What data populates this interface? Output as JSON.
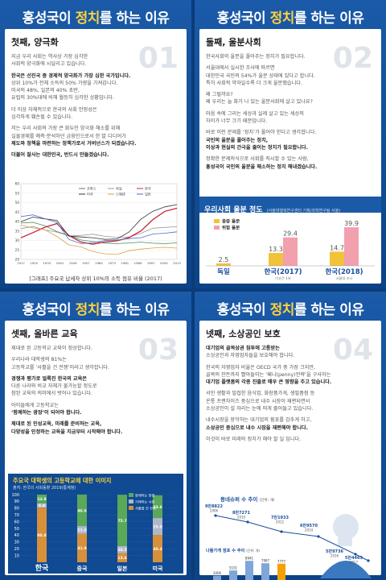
{
  "title": {
    "pre": "홍성국",
    "mid1": "이 ",
    "hl": "정치",
    "post": "를 하는 이유"
  },
  "p1": {
    "num": "01",
    "subtitle": "첫째, 양극화",
    "t1": "지금 우리 사회는 역사상 가장 심각한",
    "t2": "사회적 양극화에 시달리고 있습니다.",
    "t3": "한국은 선진국 중 경제적 양극화가 가장 심한 국가입니다.",
    "t4": "상위 10%가 전체 소득의 50% 가량을 가져갑니다.",
    "t5": "미국의 48%, 일본의 40% 초반,",
    "t6": "유럽의 30%대에 비해 월등히 심각한 상황입니다.",
    "t7": "더 이상 자체적으로 한국의 사회 안정성은",
    "t8": "심각하게 훼손될 수 있습니다.",
    "t9": "저는 우리 사회의 가장 큰 화두인 양극화 해소를 위해",
    "t10": "실물경제를 예측·분석하던 금융인으로서 한 발 디디어가",
    "t11": "제도와 정책을 마련하는 정책가로서 거버넌스가 되겠습니다.",
    "t12": "더불어 잘사는 대한민국, 반드시 만들겠습니다.",
    "caption": "[그래프] 주요국 납세자 상위 10%의 소득 점유 비율 (2017)"
  },
  "chart1": {
    "type": "line",
    "legend": [
      "프랑스",
      "독일",
      "한국",
      "미국",
      "스웨덴",
      "일본"
    ],
    "colors": [
      "#4a8a5a",
      "#999999",
      "#c8243a",
      "#333333",
      "#d8a040",
      "#4a6ec0"
    ],
    "yticks": [
      "60",
      "55",
      "50",
      "45",
      "40",
      "35",
      "30",
      "25",
      "20"
    ],
    "xticks": [
      "1917",
      "1925",
      "1933",
      "1941",
      "1949",
      "1957",
      "1965",
      "1973",
      "1981",
      "1989",
      "1997",
      "2005",
      "2013"
    ],
    "ylim": [
      20,
      60
    ]
  },
  "p2": {
    "num": "02",
    "subtitle": "둘째, 울분사회",
    "t1": "한국사회의 울분을 풀어주는 정치가 필요합니다.",
    "t2": "서울대에서 실시한 조사에 따르면",
    "t3": "대한민국 국민의 54%가 울분 상태에 있다고 합니다.",
    "t4": "특히 사회적 약자일수록 더 크게 울분했습니다.",
    "t5": "왜 그럴까요?",
    "t6": "왜 우리는 늘 화가 나 있는 울분사회에 살고 있나요?",
    "t7": "마음 속에 그리는 세상과 실제 살고 있는 세상의",
    "t8": "차이가 너무 크기 때문입니다.",
    "t9": "바로 이런 문제를 ‘정치’가 풀어야 한다고 생각합니다.",
    "t10": "국민의 울분을 풀어주는 정치,",
    "t11": "이상과 현실의 간극을 줄이는 정치가 필요합니다.",
    "t12": "정확한 문제의식으로 사회를 직시할 수 있는 사람,",
    "t13": "홍성국이 국민의 울분을 해소하는 정치 해내겠습니다.",
    "chart_title": "우리사회 울분 정도",
    "chart_src": "(서울대행복연구센터 기획/과학연구팀 서울)"
  },
  "chart2": {
    "type": "bar",
    "legend": [
      "중증 울분",
      "위험 울분"
    ],
    "colors": [
      "#f2c23a",
      "#f2a0ae"
    ],
    "categories": [
      "독일",
      "한국(2017)",
      "한국(2018)"
    ],
    "subs": [
      "",
      "이슈큰 1위",
      "서울대 조사"
    ],
    "series": [
      {
        "name": "중증 울분",
        "values": [
          2.5,
          13.3,
          14.7
        ]
      },
      {
        "name": "위험 울분",
        "values": [
          null,
          29.4,
          39.9
        ]
      }
    ],
    "labels": [
      "2.5",
      "13.3",
      "29.4",
      "14.7",
      "39.9"
    ]
  },
  "p3": {
    "num": "03",
    "subtitle": "셋째, 올바른 교육",
    "t1": "제대로 된 고등학교 교육이 정상합니다.",
    "t2": "우리나라 대학생의 81%는",
    "t3": "고등학교를 ‘사활을 건 전쟁’이라고 생각합니다.",
    "t4": "경쟁과 평가로 얼룩진 한국의 교육은",
    "t5": "다른 나라와 비교 자체가 불가능할 정도로",
    "t6": "참된 교육의 의미에서 벗어나 있습니다.",
    "t7": "아이들에게 고등학교는",
    "t8": "‘함께하는 광장’이 되어야 합니다.",
    "t9": "제대로 된 인성교육, 미래를 준비하는 교육,",
    "t10": "다양성을 인정하는 교육을 지금부터 시작해야 합니다.",
    "chart_title": "주요국 대학생의 고등학교에 대한 이미지",
    "chart_src": "출처: 한국의 사회동향 2019(통계청)"
  },
  "chart3": {
    "type": "bar",
    "legend": [
      "함께하는 광장",
      "거래하는 시장",
      "사활을 건 전쟁"
    ],
    "colors": [
      "#5aa85a",
      "#b0b8c8",
      "#d8903a"
    ],
    "categories": [
      "한국",
      "중국",
      "일본",
      "미국"
    ],
    "series": [
      {
        "name": "사활을 건 전쟁",
        "values": [
          80.8,
          41.9,
          13.6,
          40.4
        ]
      },
      {
        "name": "거래하는 시장",
        "values": [
          6.4,
          11.6,
          10.5,
          25.0
        ]
      },
      {
        "name": "함께하는 광장",
        "values": [
          12.8,
          46.6,
          75.7,
          33.6
        ]
      }
    ],
    "yticks": [
      "100",
      "90",
      "80",
      "70",
      "60",
      "50",
      "40",
      "30",
      "20",
      "10"
    ],
    "ylim": [
      0,
      100
    ]
  },
  "p4": {
    "num": "04",
    "subtitle": "넷째, 소상공인 보호",
    "t1": "대기업의 골목상권 침투에 고통받는",
    "t2": "소상공인과 자영업자들을 보호해야 합니다.",
    "t3": "한국의 자영업자 비율은 OECD 국가 중 가장 크지만,",
    "t4": "골목의 잔돈까지 빨아들이는 ‘페니(penny)전략’을 구사하는",
    "t5": "대기업 플랫폼의 각종 진출로 매우 큰 영향을 주고 있습니다.",
    "t6": "서민 생활과 밀접한 음식업, 화장품가게, 생필품점 등",
    "t7": "온통 프랜차이즈 중심으로 내수 시장이 재편되면서",
    "t8": "소상공인이 설 자리는 눈에 띄게 줄어들고 있습니다.",
    "t9": "내수시장을 장악하는 대기업의 횡포를 감추게 하고,",
    "t10": "소상공인 중심으로 내수 시장을 재편해야 합니다.",
    "t11": "이것이 바로 미래의 정치가 해야 할 일 입니다.",
    "c_title1": "동네슈퍼 수 추이",
    "c_unit1": "(단위: 개)",
    "c_title2": "나들가게 점포 수 추이",
    "c_unit2": "(단위: 개)",
    "src": "출처: 통계청 「(중소벤처기업부) 조사 2015년 1월 발표 「동네슈퍼」 추이 (2019, 이스크로)"
  },
  "chart4a": {
    "type": "line",
    "x": [
      "2006",
      "2010",
      "2012",
      "2014",
      "2016",
      "2017"
    ],
    "values": [
      98822,
      87271,
      71933,
      69570,
      59736,
      54463
    ],
    "labels": [
      "9만8822",
      "8만7271",
      "7만1933",
      "6만9570",
      "5만9736",
      "5만4463"
    ]
  },
  "chart4b": {
    "type": "bar",
    "x": [
      "2011",
      "2013",
      "2015",
      "2017",
      "2019.5"
    ],
    "values": [
      3006,
      5101,
      8941,
      7967,
      7777
    ],
    "labels": [
      "3006",
      "5101",
      "8941",
      "7967",
      "7777"
    ]
  }
}
